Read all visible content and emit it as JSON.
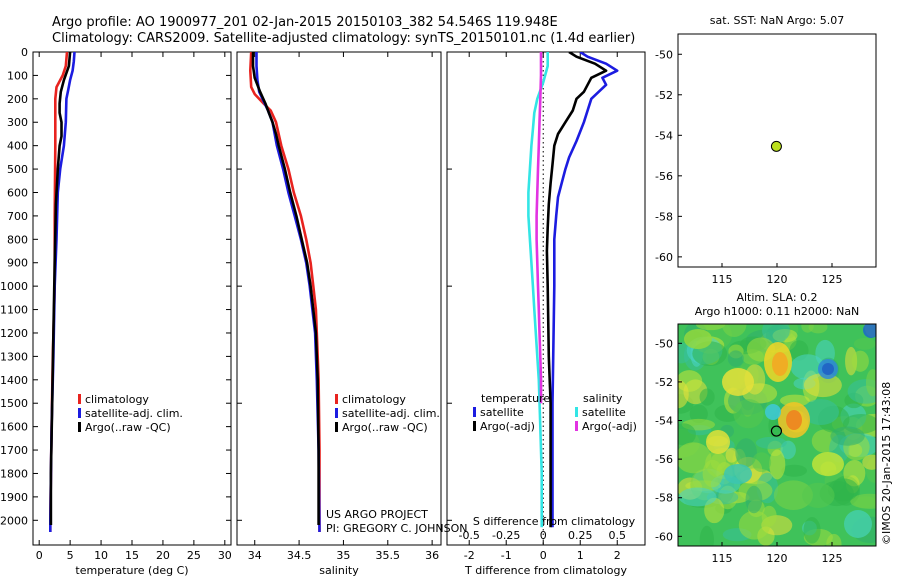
{
  "header": {
    "line1": "Argo profile: AO 1900977_201 02-Jan-2015 20150103_382 54.546S 119.948E",
    "line2": "Climatology: CARS2009. Satellite-adjusted climatology: synTS_20150101.nc (1.4d earlier)"
  },
  "colors": {
    "climatology": "#e8231f",
    "satellite": "#1c1ce0",
    "argo": "#000000",
    "sal_satellite": "#33e5e5",
    "sal_argo": "#e233e2"
  },
  "credit": {
    "line1": "US ARGO PROJECT",
    "line2": "PI: GREGORY C. JOHNSON"
  },
  "timestamp": "©IMOS 20-Jan-2015 17:43:08",
  "legend_left": [
    "climatology",
    "satellite-adj. clim.",
    "Argo(..raw -QC)"
  ],
  "legend_diff": {
    "temp_title": "temperature",
    "sal_title": "salinity",
    "items": [
      "satellite",
      "Argo(-adj)"
    ]
  },
  "chart_data": [
    {
      "type": "line",
      "xlabel": "temperature (deg C)",
      "ylabel": "",
      "xlim": [
        -1,
        31
      ],
      "ylim": [
        2050,
        0
      ],
      "xticks": [
        0,
        5,
        10,
        15,
        20,
        25,
        30
      ],
      "yticks": [
        0,
        100,
        200,
        300,
        400,
        500,
        600,
        700,
        800,
        900,
        1000,
        1100,
        1200,
        1300,
        1400,
        1500,
        1600,
        1700,
        1800,
        1900,
        2000
      ],
      "legend_position": "middle-center",
      "series": [
        {
          "name": "climatology",
          "color": "#e8231f",
          "points": [
            [
              4.5,
              0
            ],
            [
              4.3,
              60
            ],
            [
              3.8,
              100
            ],
            [
              2.8,
              150
            ],
            [
              2.6,
              200
            ],
            [
              2.6,
              400
            ],
            [
              2.5,
              700
            ],
            [
              2.5,
              1000
            ],
            [
              2.2,
              1300
            ],
            [
              2.0,
              1600
            ],
            [
              1.8,
              2000
            ],
            [
              1.8,
              2050
            ]
          ]
        },
        {
          "name": "satellite-adj. clim.",
          "color": "#1c1ce0",
          "points": [
            [
              5.7,
              0
            ],
            [
              5.6,
              40
            ],
            [
              5.4,
              80
            ],
            [
              5.0,
              120
            ],
            [
              4.7,
              160
            ],
            [
              4.4,
              200
            ],
            [
              4.3,
              300
            ],
            [
              4.0,
              400
            ],
            [
              3.4,
              500
            ],
            [
              3.0,
              600
            ],
            [
              2.8,
              800
            ],
            [
              2.5,
              1000
            ],
            [
              2.3,
              1300
            ],
            [
              2.0,
              1600
            ],
            [
              1.8,
              2000
            ],
            [
              1.8,
              2050
            ]
          ]
        },
        {
          "name": "Argo(..raw -QC)",
          "color": "#000000",
          "points": [
            [
              5.0,
              0
            ],
            [
              4.8,
              60
            ],
            [
              4.0,
              120
            ],
            [
              3.5,
              170
            ],
            [
              3.3,
              220
            ],
            [
              3.3,
              260
            ],
            [
              3.6,
              300
            ],
            [
              3.6,
              360
            ],
            [
              3.3,
              400
            ],
            [
              3.0,
              500
            ],
            [
              2.7,
              650
            ],
            [
              2.5,
              900
            ],
            [
              2.3,
              1200
            ],
            [
              2.1,
              1500
            ],
            [
              1.9,
              1800
            ],
            [
              1.9,
              2020
            ]
          ]
        }
      ]
    },
    {
      "type": "line",
      "xlabel": "salinity",
      "ylabel": "",
      "xlim": [
        33.8,
        36.1
      ],
      "ylim": [
        2050,
        0
      ],
      "xticks": [
        34,
        34.5,
        35,
        35.5,
        36
      ],
      "xtick_labels": [
        "34",
        "34.5",
        "35",
        "35.5",
        "36"
      ],
      "legend_position": "bottom-right",
      "series": [
        {
          "name": "climatology",
          "color": "#e8231f",
          "points": [
            [
              33.96,
              0
            ],
            [
              33.95,
              80
            ],
            [
              33.96,
              150
            ],
            [
              34.0,
              180
            ],
            [
              34.1,
              220
            ],
            [
              34.18,
              250
            ],
            [
              34.24,
              300
            ],
            [
              34.3,
              400
            ],
            [
              34.38,
              500
            ],
            [
              34.44,
              600
            ],
            [
              34.52,
              700
            ],
            [
              34.58,
              800
            ],
            [
              34.63,
              900
            ],
            [
              34.66,
              1000
            ],
            [
              34.69,
              1100
            ],
            [
              34.7,
              1200
            ],
            [
              34.72,
              1400
            ],
            [
              34.73,
              1700
            ],
            [
              34.73,
              2050
            ]
          ]
        },
        {
          "name": "satellite-adj. clim.",
          "color": "#1c1ce0",
          "points": [
            [
              34.02,
              0
            ],
            [
              34.02,
              60
            ],
            [
              34.03,
              120
            ],
            [
              34.05,
              170
            ],
            [
              34.1,
              210
            ],
            [
              34.15,
              250
            ],
            [
              34.2,
              300
            ],
            [
              34.25,
              400
            ],
            [
              34.32,
              500
            ],
            [
              34.38,
              600
            ],
            [
              34.45,
              700
            ],
            [
              34.52,
              800
            ],
            [
              34.58,
              900
            ],
            [
              34.62,
              1000
            ],
            [
              34.65,
              1100
            ],
            [
              34.68,
              1200
            ],
            [
              34.7,
              1400
            ],
            [
              34.72,
              1700
            ],
            [
              34.73,
              2050
            ]
          ]
        },
        {
          "name": "Argo(..raw -QC)",
          "color": "#000000",
          "points": [
            [
              33.98,
              0
            ],
            [
              33.98,
              60
            ],
            [
              34.0,
              110
            ],
            [
              34.06,
              170
            ],
            [
              34.12,
              220
            ],
            [
              34.16,
              260
            ],
            [
              34.2,
              300
            ],
            [
              34.24,
              350
            ],
            [
              34.27,
              400
            ],
            [
              34.34,
              500
            ],
            [
              34.4,
              600
            ],
            [
              34.47,
              700
            ],
            [
              34.53,
              800
            ],
            [
              34.59,
              900
            ],
            [
              34.63,
              1000
            ],
            [
              34.66,
              1100
            ],
            [
              34.69,
              1200
            ],
            [
              34.71,
              1400
            ],
            [
              34.72,
              1700
            ],
            [
              34.72,
              2020
            ]
          ]
        }
      ]
    },
    {
      "type": "line",
      "xlabel": "T difference from climatology",
      "secondary_xlabel": "S difference from climatology",
      "ylabel": "",
      "xlim": [
        -2.6,
        2.75
      ],
      "ylim": [
        2050,
        0
      ],
      "xticks": [
        -2,
        -1,
        0,
        1,
        2
      ],
      "sal_scale": 4,
      "sal_xticks": [
        -0.5,
        -0.25,
        0,
        0.25,
        0.5
      ],
      "sal_xtick_labels": [
        "-0.5",
        "-0.25",
        "0",
        "0.25",
        "0.5"
      ],
      "legend_position": "bottom",
      "series": [
        {
          "name": "temperature satellite",
          "units": "deg C",
          "color": "#1c1ce0",
          "points": [
            [
              1.0,
              0
            ],
            [
              1.2,
              20
            ],
            [
              1.7,
              50
            ],
            [
              2.0,
              80
            ],
            [
              1.6,
              110
            ],
            [
              1.7,
              140
            ],
            [
              1.5,
              170
            ],
            [
              1.3,
              200
            ],
            [
              1.2,
              250
            ],
            [
              1.1,
              300
            ],
            [
              0.9,
              380
            ],
            [
              0.7,
              450
            ],
            [
              0.6,
              500
            ],
            [
              0.5,
              560
            ],
            [
              0.4,
              620
            ],
            [
              0.35,
              700
            ],
            [
              0.3,
              800
            ],
            [
              0.3,
              1000
            ],
            [
              0.25,
              1500
            ],
            [
              0.25,
              2030
            ]
          ]
        },
        {
          "name": "temperature Argo(-adj)",
          "units": "deg C",
          "color": "#000000",
          "points": [
            [
              0.7,
              0
            ],
            [
              0.9,
              20
            ],
            [
              1.4,
              50
            ],
            [
              1.7,
              80
            ],
            [
              1.3,
              110
            ],
            [
              1.2,
              140
            ],
            [
              1.1,
              170
            ],
            [
              0.9,
              200
            ],
            [
              0.8,
              250
            ],
            [
              0.6,
              300
            ],
            [
              0.4,
              350
            ],
            [
              0.3,
              400
            ],
            [
              0.25,
              480
            ],
            [
              0.2,
              560
            ],
            [
              0.15,
              650
            ],
            [
              0.12,
              750
            ],
            [
              0.1,
              850
            ],
            [
              0.12,
              1000
            ],
            [
              0.15,
              1300
            ],
            [
              0.2,
              1500
            ],
            [
              0.2,
              2030
            ]
          ]
        },
        {
          "name": "salinity satellite",
          "units": "psu",
          "color": "#33e5e5",
          "points": [
            [
              0.03,
              0
            ],
            [
              0.03,
              60
            ],
            [
              0.0,
              130
            ],
            [
              -0.04,
              200
            ],
            [
              -0.06,
              260
            ],
            [
              -0.07,
              330
            ],
            [
              -0.08,
              400
            ],
            [
              -0.09,
              500
            ],
            [
              -0.1,
              600
            ],
            [
              -0.1,
              700
            ],
            [
              -0.09,
              800
            ],
            [
              -0.08,
              900
            ],
            [
              -0.07,
              1000
            ],
            [
              -0.06,
              1100
            ],
            [
              -0.05,
              1200
            ],
            [
              -0.04,
              1300
            ],
            [
              -0.03,
              1400
            ],
            [
              -0.02,
              1600
            ],
            [
              -0.01,
              1800
            ],
            [
              -0.01,
              2030
            ]
          ]
        },
        {
          "name": "salinity Argo(-adj)",
          "units": "psu",
          "color": "#e233e2",
          "points": [
            [
              -0.015,
              0
            ],
            [
              -0.015,
              100
            ],
            [
              -0.02,
              200
            ],
            [
              -0.025,
              300
            ],
            [
              -0.03,
              400
            ],
            [
              -0.035,
              500
            ],
            [
              -0.04,
              600
            ],
            [
              -0.045,
              700
            ],
            [
              -0.045,
              800
            ],
            [
              -0.04,
              900
            ],
            [
              -0.035,
              1000
            ],
            [
              -0.03,
              1100
            ],
            [
              -0.025,
              1200
            ],
            [
              -0.02,
              1300
            ],
            [
              -0.015,
              1400
            ],
            [
              -0.015,
              1500
            ]
          ]
        }
      ]
    },
    {
      "type": "scatter",
      "title": "sat. SST: NaN Argo: 5.07",
      "xlim": [
        111,
        129
      ],
      "ylim": [
        -60.5,
        -49
      ],
      "xticks": [
        115,
        120,
        125
      ],
      "yticks": [
        -50,
        -52,
        -54,
        -56,
        -58,
        -60
      ],
      "points": [
        {
          "x": 119.948,
          "y": -54.546,
          "color": "#bbe01e"
        }
      ]
    },
    {
      "type": "heatmap",
      "title_line1": "Altim. SLA: 0.2",
      "title_line2": "Argo h1000: 0.11 h2000: NaN",
      "xlim": [
        111,
        129
      ],
      "ylim": [
        -60.5,
        -49
      ],
      "xticks": [
        115,
        120,
        125
      ],
      "yticks": [
        -50,
        -52,
        -54,
        -56,
        -58,
        -60
      ],
      "marker": {
        "x": 119.948,
        "y": -54.546
      }
    }
  ]
}
